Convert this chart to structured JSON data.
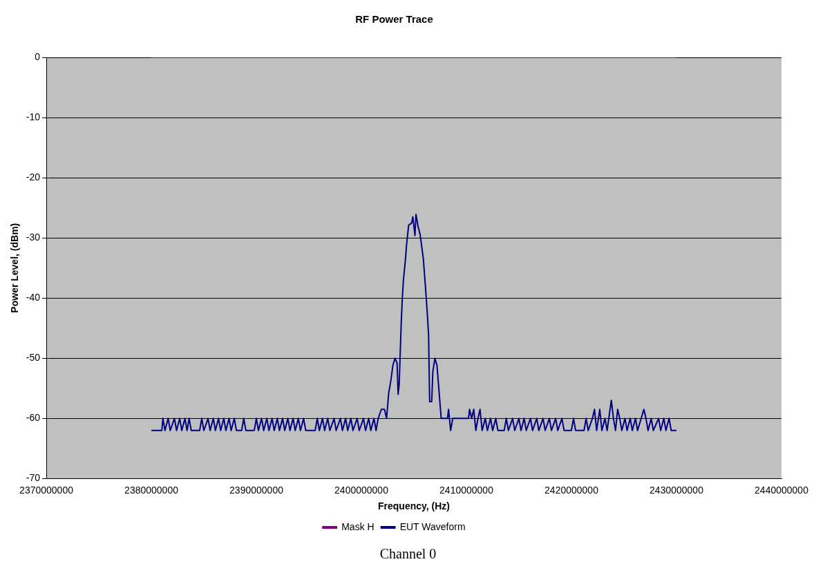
{
  "chart_data": {
    "type": "line",
    "title": "RF Power Trace",
    "xlabel": "Frequency, (Hz)",
    "ylabel": "Power Level, (dBm)",
    "annotations": [
      "Channel 0"
    ],
    "xlim": [
      2370000000,
      2440000000
    ],
    "xticks": [
      2370000000,
      2380000000,
      2390000000,
      2400000000,
      2410000000,
      2420000000,
      2430000000,
      2440000000
    ],
    "ylim": [
      -70,
      0
    ],
    "yticks": [
      -70,
      -60,
      -50,
      -40,
      -30,
      -20,
      -10,
      0
    ],
    "grid": "y",
    "legend": "bottom",
    "marker": "none",
    "line_style": "solid",
    "series": [
      {
        "name": "Mask H",
        "color": "#800080",
        "x": [
          2380000000,
          2430000000
        ],
        "values": [
          0,
          0
        ]
      },
      {
        "name": "EUT Waveform",
        "color": "#000080",
        "x": [
          2380000000,
          2381000000,
          2381100000,
          2381300000,
          2381600000,
          2381800000,
          2382200000,
          2382400000,
          2382700000,
          2382900000,
          2383200000,
          2383400000,
          2383600000,
          2383800000,
          2384600000,
          2384800000,
          2385000000,
          2385400000,
          2385600000,
          2385900000,
          2386100000,
          2386400000,
          2386600000,
          2386900000,
          2387100000,
          2387400000,
          2387600000,
          2387900000,
          2388100000,
          2388600000,
          2388800000,
          2389000000,
          2389800000,
          2390000000,
          2390200000,
          2390500000,
          2390700000,
          2391000000,
          2391200000,
          2391500000,
          2391700000,
          2392000000,
          2392200000,
          2392500000,
          2392700000,
          2393000000,
          2393200000,
          2393500000,
          2393700000,
          2394000000,
          2394200000,
          2394500000,
          2394700000,
          2395600000,
          2395800000,
          2396000000,
          2396300000,
          2396500000,
          2396800000,
          2397000000,
          2397400000,
          2397600000,
          2398000000,
          2398200000,
          2398500000,
          2398700000,
          2399000000,
          2399200000,
          2399600000,
          2399800000,
          2400200000,
          2400400000,
          2400700000,
          2400900000,
          2401200000,
          2401400000,
          2401600000,
          2401900000,
          2402200000,
          2402400000,
          2402600000,
          2402800000,
          2403000000,
          2403200000,
          2403400000,
          2403500000,
          2403600000,
          2403800000,
          2403900000,
          2404000000,
          2404200000,
          2404300000,
          2404500000,
          2404800000,
          2404900000,
          2405100000,
          2405200000,
          2405400000,
          2405600000,
          2405900000,
          2406100000,
          2406300000,
          2406400000,
          2406500000,
          2406700000,
          2406800000,
          2407000000,
          2407200000,
          2407600000,
          2408200000,
          2408300000,
          2408500000,
          2408700000,
          2410200000,
          2410300000,
          2410500000,
          2410700000,
          2410900000,
          2411100000,
          2411300000,
          2411500000,
          2411800000,
          2412000000,
          2412300000,
          2412500000,
          2412800000,
          2413000000,
          2413600000,
          2413800000,
          2414000000,
          2414400000,
          2414600000,
          2415000000,
          2415200000,
          2415500000,
          2415700000,
          2416100000,
          2416300000,
          2416700000,
          2416900000,
          2417300000,
          2417500000,
          2417900000,
          2418100000,
          2418500000,
          2418700000,
          2419100000,
          2419300000,
          2420000000,
          2420200000,
          2420400000,
          2421200000,
          2421400000,
          2421600000,
          2422000000,
          2422200000,
          2422400000,
          2422700000,
          2422900000,
          2423200000,
          2423400000,
          2423800000,
          2424000000,
          2424200000,
          2424400000,
          2424600000,
          2424800000,
          2425100000,
          2425300000,
          2425600000,
          2425800000,
          2426100000,
          2426300000,
          2426900000,
          2427100000,
          2427300000,
          2427600000,
          2427800000,
          2428300000,
          2428500000,
          2428800000,
          2429000000,
          2429300000,
          2429500000,
          2430000000
        ],
        "values": [
          -62,
          -62,
          -60,
          -62,
          -60,
          -62,
          -60,
          -62,
          -60,
          -62,
          -60,
          -62,
          -60,
          -62,
          -62,
          -60,
          -62,
          -60,
          -62,
          -60,
          -62,
          -60,
          -62,
          -60,
          -62,
          -60,
          -62,
          -60,
          -62,
          -62,
          -60,
          -62,
          -62,
          -60,
          -62,
          -60,
          -62,
          -60,
          -62,
          -60,
          -62,
          -60,
          -62,
          -60,
          -62,
          -60,
          -62,
          -60,
          -62,
          -60,
          -62,
          -60,
          -62,
          -62,
          -60,
          -62,
          -60,
          -62,
          -60,
          -62,
          -60,
          -62,
          -60,
          -62,
          -60,
          -62,
          -60,
          -62,
          -60,
          -62,
          -60,
          -62,
          -60,
          -62,
          -60,
          -62,
          -60,
          -58.5,
          -58.5,
          -60,
          -55.8,
          -53.8,
          -51.2,
          -50,
          -50.8,
          -56,
          -54.3,
          -43.9,
          -40,
          -37.1,
          -33.5,
          -31.2,
          -27.9,
          -27.5,
          -26.5,
          -29.6,
          -26.1,
          -28.1,
          -29.5,
          -33.5,
          -38.1,
          -43.1,
          -46.2,
          -57.2,
          -57.2,
          -52.3,
          -50,
          -51.2,
          -60,
          -60,
          -58.5,
          -62,
          -60,
          -60,
          -58.5,
          -60,
          -58.5,
          -62,
          -60,
          -58.5,
          -62,
          -60,
          -62,
          -60,
          -62,
          -60,
          -62,
          -62,
          -60,
          -62,
          -60,
          -62,
          -60,
          -62,
          -60,
          -62,
          -60,
          -62,
          -60,
          -62,
          -60,
          -62,
          -60,
          -62,
          -60,
          -62,
          -60,
          -62,
          -62,
          -60,
          -62,
          -62,
          -60,
          -62,
          -60,
          -58.5,
          -62,
          -58.5,
          -62,
          -60,
          -62,
          -57,
          -60,
          -62,
          -58.5,
          -60,
          -62,
          -60,
          -62,
          -60,
          -62,
          -60,
          -62,
          -58.5,
          -60,
          -62,
          -60,
          -62,
          -60,
          -62,
          -60,
          -62,
          -60,
          -62,
          -62
        ]
      }
    ]
  }
}
